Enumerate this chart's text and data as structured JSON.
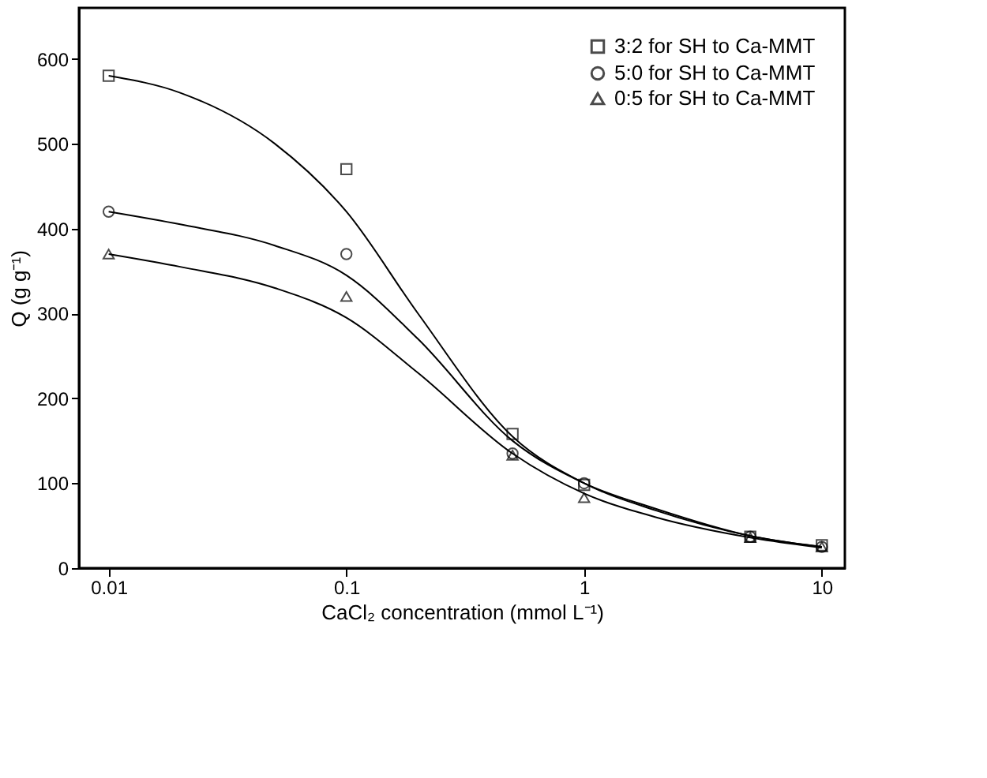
{
  "chart_data": {
    "type": "scatter",
    "xlabel": "CaCl₂ concentration (mmol L⁻¹)",
    "ylabel": "Q (g g⁻¹)",
    "log": "x",
    "xlim": [
      0.0075,
      12.5
    ],
    "xticks": [
      0.01,
      0.1,
      1,
      10
    ],
    "ylim": [
      0,
      660
    ],
    "yticks": [
      0,
      100,
      200,
      300,
      400,
      500,
      600
    ],
    "grid": false,
    "legend": "top right",
    "series": [
      {
        "name": "3:2 for SH to Ca-MMT",
        "marker": "square",
        "color": "#000000",
        "x": [
          0.01,
          0.1,
          0.5,
          1,
          5,
          10
        ],
        "values": [
          580,
          470,
          158,
          98,
          37,
          27
        ]
      },
      {
        "name": "5:0 for SH to Ca-MMT",
        "marker": "circle",
        "color": "#000000",
        "x": [
          0.01,
          0.1,
          0.5,
          1,
          5,
          10
        ],
        "values": [
          420,
          370,
          135,
          100,
          37,
          25
        ]
      },
      {
        "name": "0:5 for SH to Ca-MMT",
        "marker": "triangle",
        "color": "#000000",
        "x": [
          0.01,
          0.1,
          0.5,
          1,
          5,
          10
        ],
        "values": [
          370,
          320,
          133,
          83,
          36,
          25
        ]
      },
      {
        "type": "line",
        "color": "#000000",
        "x": [
          0.01,
          0.02,
          0.05,
          0.1,
          0.2,
          0.5,
          1,
          2,
          5,
          10
        ],
        "values": [
          580,
          560,
          500,
          420,
          300,
          155,
          100,
          68,
          38,
          25
        ]
      },
      {
        "type": "line",
        "color": "#000000",
        "x": [
          0.01,
          0.02,
          0.05,
          0.1,
          0.2,
          0.5,
          1,
          2,
          5,
          10
        ],
        "values": [
          420,
          405,
          380,
          345,
          270,
          150,
          100,
          70,
          38,
          25
        ]
      },
      {
        "type": "line",
        "color": "#000000",
        "x": [
          0.01,
          0.02,
          0.05,
          0.1,
          0.2,
          0.5,
          1,
          2,
          5,
          10
        ],
        "values": [
          370,
          355,
          330,
          295,
          230,
          135,
          88,
          60,
          36,
          24
        ]
      }
    ]
  }
}
